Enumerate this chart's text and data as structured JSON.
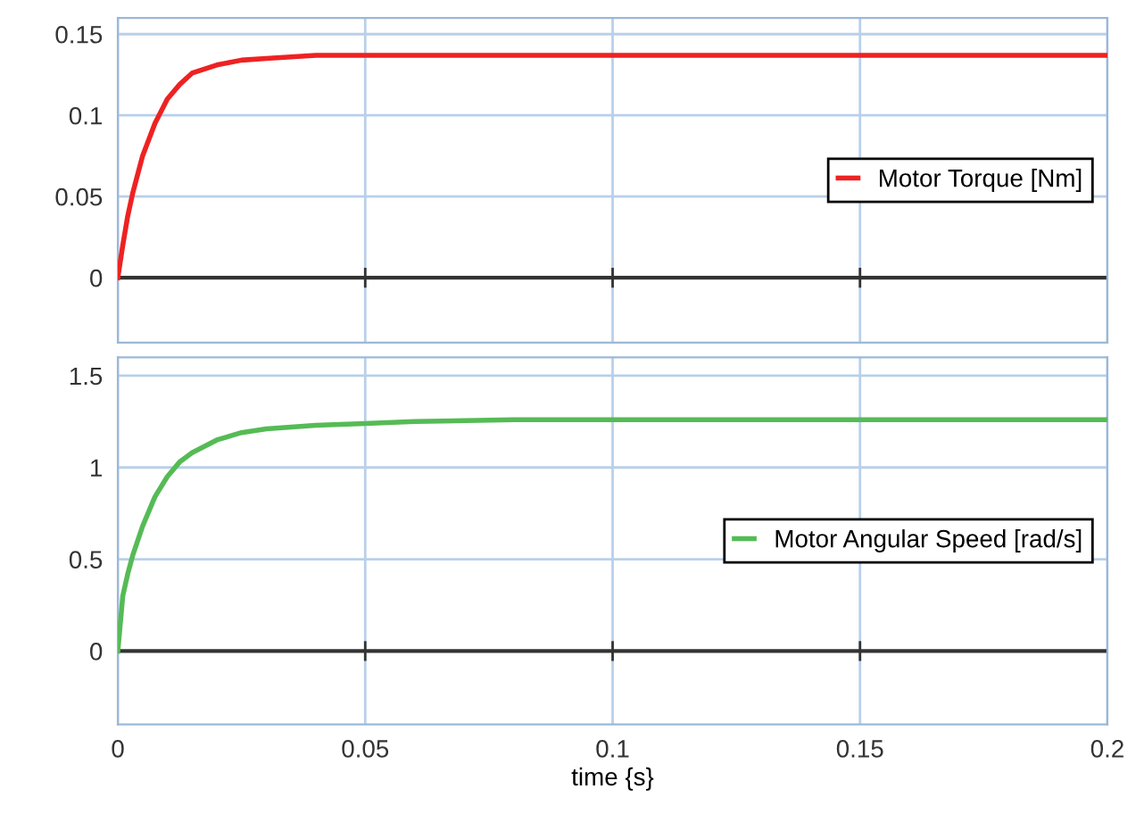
{
  "chart_data": [
    {
      "type": "line",
      "x": [
        0,
        0.001,
        0.002,
        0.003,
        0.005,
        0.0075,
        0.01,
        0.0125,
        0.015,
        0.02,
        0.025,
        0.03,
        0.035,
        0.04,
        0.2
      ],
      "series": [
        {
          "name": "Motor Torque [Nm]",
          "color": "#ee2222",
          "values": [
            0,
            0.02,
            0.038,
            0.052,
            0.075,
            0.095,
            0.11,
            0.119,
            0.126,
            0.131,
            0.134,
            0.135,
            0.136,
            0.137,
            0.137
          ]
        }
      ],
      "xlim": [
        0,
        0.2
      ],
      "xticks": [
        0,
        0.05,
        0.1,
        0.15,
        0.2
      ],
      "ylim": [
        -0.04,
        0.16
      ],
      "yticks": [
        0,
        0.05,
        0.1,
        0.15
      ],
      "grid": true,
      "legend": "right",
      "tick_labels": "y",
      "marker": "none",
      "line_style": "solid",
      "ref_lines": [
        {
          "axis": "y",
          "value": 0,
          "color": "#333333"
        }
      ]
    },
    {
      "type": "line",
      "x": [
        0,
        0.001,
        0.002,
        0.003,
        0.005,
        0.0075,
        0.01,
        0.0125,
        0.015,
        0.02,
        0.025,
        0.03,
        0.04,
        0.05,
        0.06,
        0.08,
        0.2
      ],
      "series": [
        {
          "name": "Motor Angular Speed [rad/s]",
          "color": "#55bb55",
          "values": [
            0,
            0.3,
            0.42,
            0.52,
            0.68,
            0.84,
            0.95,
            1.03,
            1.08,
            1.15,
            1.19,
            1.21,
            1.23,
            1.24,
            1.25,
            1.26,
            1.26
          ]
        }
      ],
      "xlim": [
        0,
        0.2
      ],
      "xticks": [
        0,
        0.05,
        0.1,
        0.15,
        0.2
      ],
      "ylim": [
        -0.4,
        1.6
      ],
      "yticks": [
        0,
        0.5,
        1,
        1.5
      ],
      "xlabel": "time {s}",
      "grid": true,
      "legend": "right",
      "marker": "none",
      "line_style": "solid",
      "ref_lines": [
        {
          "axis": "y",
          "value": 0,
          "color": "#333333"
        }
      ]
    }
  ]
}
